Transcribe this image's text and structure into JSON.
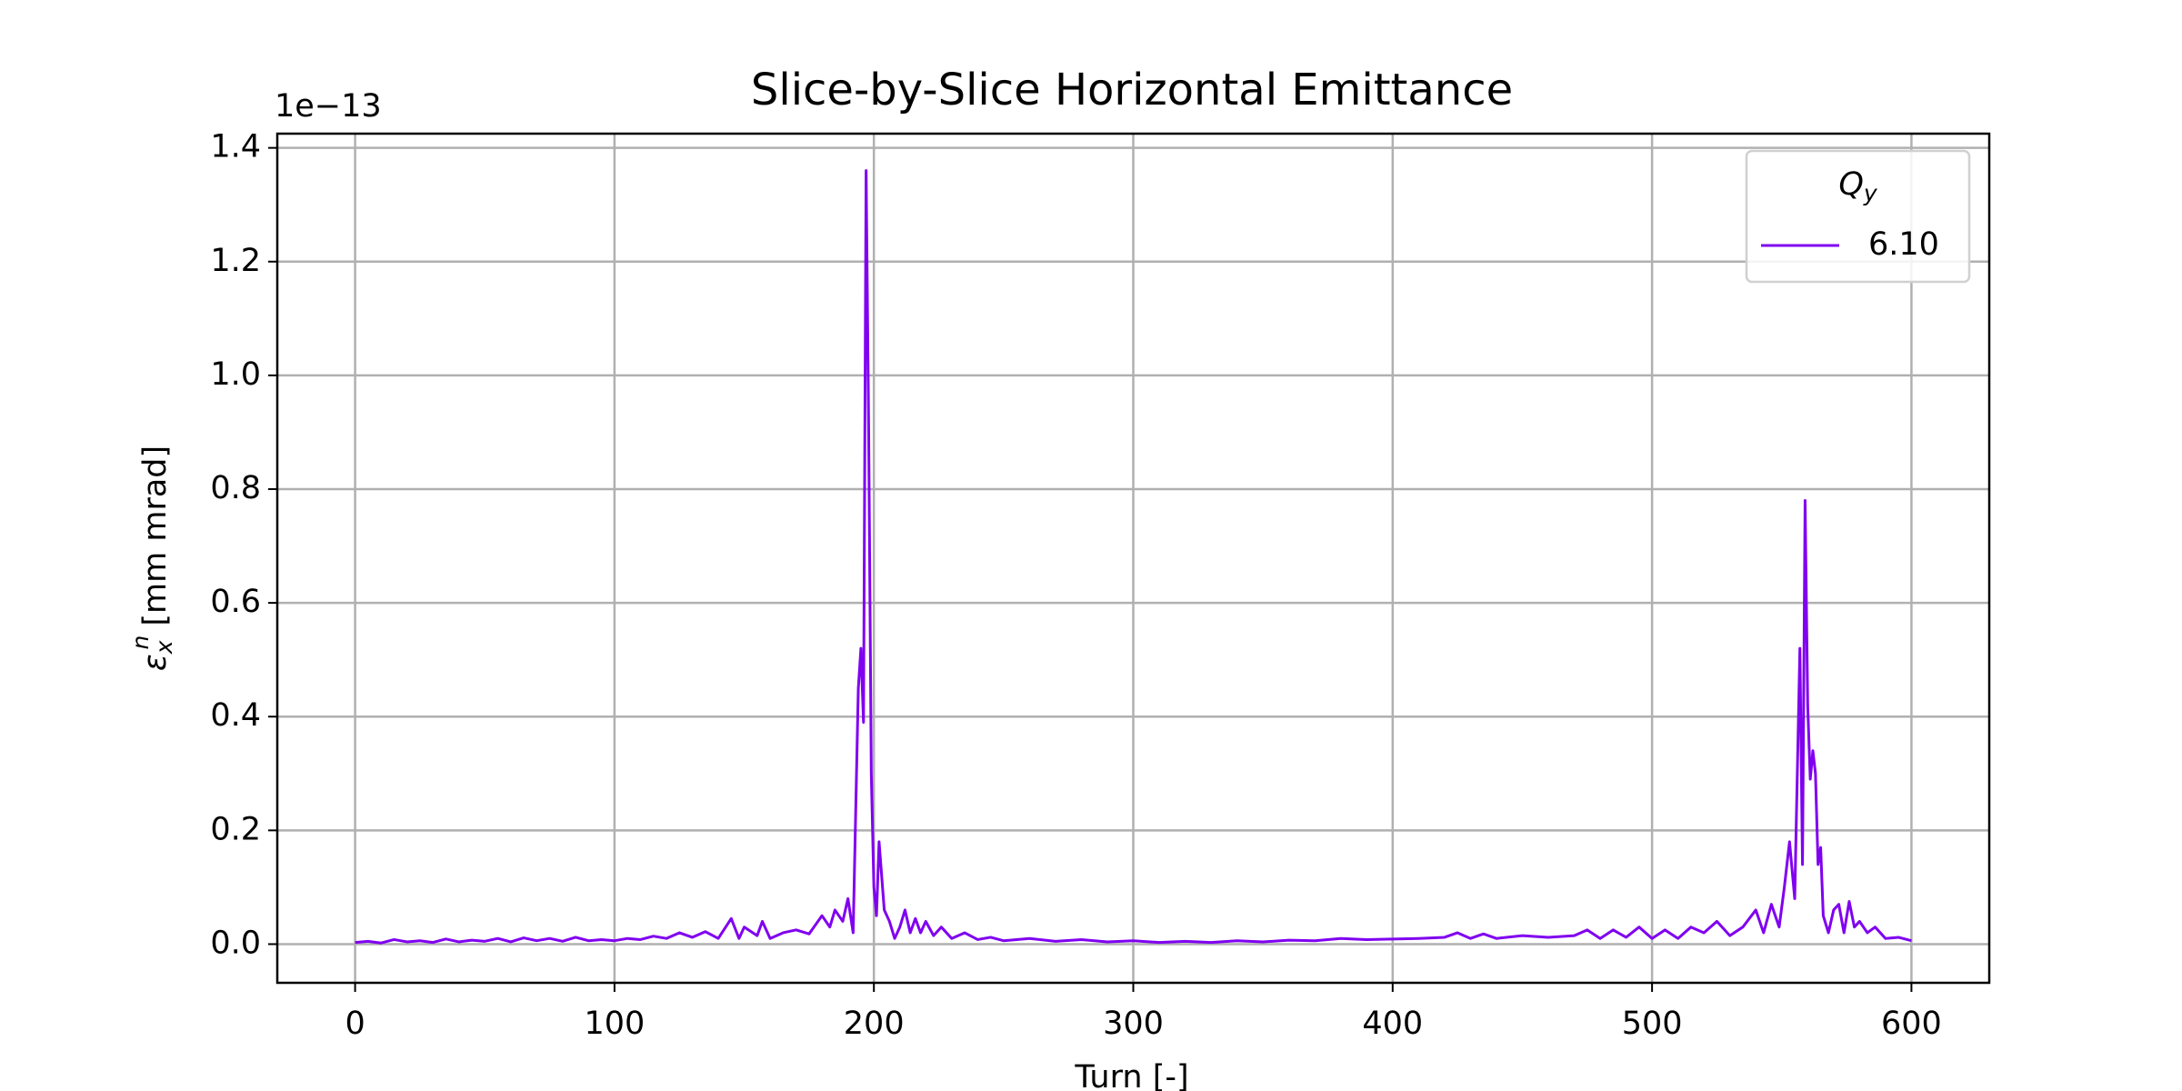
{
  "chart_data": {
    "type": "line",
    "title": "Slice-by-Slice Horizontal Emittance",
    "xlabel": "Turn [-]",
    "ylabel": {
      "symbol": "ε",
      "sub": "x",
      "sup": "n",
      "unit": "[mm mrad]"
    },
    "y_offset_label": "1e−13",
    "legend_title": {
      "base": "Q",
      "sub": "y"
    },
    "legend_position": "upper right",
    "grid": true,
    "xlim": [
      -30,
      630
    ],
    "ylim": [
      -0.068,
      1.425
    ],
    "xticks": [
      0,
      100,
      200,
      300,
      400,
      500,
      600
    ],
    "yticks": [
      {
        "value": 0,
        "label": "0.0"
      },
      0.2,
      0.4,
      0.6,
      0.8,
      {
        "value": 1,
        "label": "1.0"
      },
      1.2,
      1.4
    ],
    "x": [
      0,
      5,
      10,
      15,
      20,
      25,
      30,
      35,
      40,
      45,
      50,
      55,
      60,
      65,
      70,
      75,
      80,
      85,
      90,
      95,
      100,
      105,
      110,
      115,
      120,
      125,
      130,
      135,
      140,
      145,
      148,
      150,
      155,
      157,
      160,
      165,
      170,
      175,
      180,
      183,
      185,
      188,
      190,
      192,
      194,
      195,
      196,
      197,
      198,
      199,
      200,
      201,
      202,
      204,
      206,
      208,
      210,
      212,
      214,
      216,
      218,
      220,
      223,
      226,
      230,
      235,
      240,
      245,
      250,
      260,
      270,
      280,
      290,
      300,
      310,
      320,
      330,
      340,
      350,
      360,
      370,
      380,
      390,
      400,
      410,
      420,
      425,
      430,
      435,
      440,
      450,
      460,
      470,
      475,
      480,
      485,
      490,
      495,
      500,
      505,
      510,
      515,
      520,
      525,
      530,
      535,
      540,
      543,
      546,
      549,
      551,
      553,
      555,
      557,
      558,
      559,
      560,
      561,
      562,
      563,
      564,
      565,
      566,
      568,
      570,
      572,
      574,
      576,
      578,
      580,
      583,
      586,
      590,
      595,
      600
    ],
    "series": [
      {
        "name": "6.10",
        "color": "#8000f0",
        "values": [
          0.003,
          0.005,
          0.002,
          0.008,
          0.004,
          0.006,
          0.003,
          0.009,
          0.004,
          0.007,
          0.005,
          0.01,
          0.004,
          0.011,
          0.006,
          0.01,
          0.005,
          0.012,
          0.006,
          0.008,
          0.006,
          0.01,
          0.008,
          0.014,
          0.01,
          0.02,
          0.012,
          0.022,
          0.01,
          0.045,
          0.01,
          0.03,
          0.015,
          0.04,
          0.01,
          0.02,
          0.025,
          0.018,
          0.05,
          0.03,
          0.06,
          0.04,
          0.08,
          0.02,
          0.45,
          0.52,
          0.39,
          1.36,
          0.9,
          0.3,
          0.1,
          0.05,
          0.18,
          0.06,
          0.04,
          0.01,
          0.03,
          0.06,
          0.02,
          0.045,
          0.02,
          0.04,
          0.015,
          0.03,
          0.01,
          0.02,
          0.008,
          0.012,
          0.006,
          0.01,
          0.005,
          0.008,
          0.004,
          0.006,
          0.003,
          0.005,
          0.003,
          0.006,
          0.004,
          0.007,
          0.006,
          0.01,
          0.008,
          0.009,
          0.01,
          0.012,
          0.02,
          0.01,
          0.018,
          0.01,
          0.015,
          0.012,
          0.015,
          0.025,
          0.01,
          0.025,
          0.012,
          0.03,
          0.01,
          0.025,
          0.01,
          0.03,
          0.02,
          0.04,
          0.015,
          0.03,
          0.06,
          0.02,
          0.07,
          0.03,
          0.1,
          0.18,
          0.08,
          0.52,
          0.14,
          0.78,
          0.42,
          0.29,
          0.34,
          0.3,
          0.14,
          0.17,
          0.05,
          0.02,
          0.06,
          0.07,
          0.02,
          0.075,
          0.03,
          0.04,
          0.02,
          0.03,
          0.01,
          0.012,
          0.006
        ]
      }
    ]
  }
}
